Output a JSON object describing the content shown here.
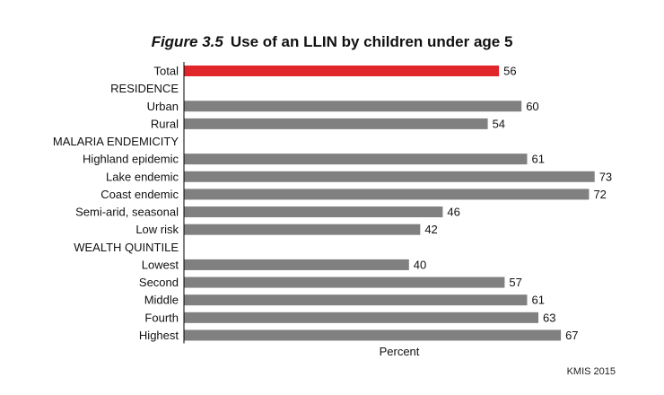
{
  "figure": {
    "figure_label": "Figure 3.5",
    "title_text": "Use of an LLIN by children under age 5",
    "source": "KMIS 2015"
  },
  "colors": {
    "highlight": "#e0262b",
    "bar": "#808080",
    "axis": "#000000"
  },
  "chart_data": {
    "type": "bar",
    "orientation": "horizontal",
    "title": "Use of an LLIN by children under age 5",
    "xlabel": "Percent",
    "ylabel": "",
    "xlim": [
      0,
      100
    ],
    "grid": false,
    "legend": "none",
    "rows": [
      {
        "label": "Total",
        "value": 56,
        "highlight": true
      },
      {
        "label": "RESIDENCE",
        "value": null,
        "heading": true
      },
      {
        "label": "Urban",
        "value": 60
      },
      {
        "label": "Rural",
        "value": 54
      },
      {
        "label": "MALARIA ENDEMICITY",
        "value": null,
        "heading": true
      },
      {
        "label": "Highland epidemic",
        "value": 61
      },
      {
        "label": "Lake endemic",
        "value": 73
      },
      {
        "label": "Coast endemic",
        "value": 72
      },
      {
        "label": "Semi-arid, seasonal",
        "value": 46
      },
      {
        "label": "Low risk",
        "value": 42
      },
      {
        "label": "WEALTH QUINTILE",
        "value": null,
        "heading": true
      },
      {
        "label": "Lowest",
        "value": 40
      },
      {
        "label": "Second",
        "value": 57
      },
      {
        "label": "Middle",
        "value": 61
      },
      {
        "label": "Fourth",
        "value": 63
      },
      {
        "label": "Highest",
        "value": 67
      }
    ]
  }
}
